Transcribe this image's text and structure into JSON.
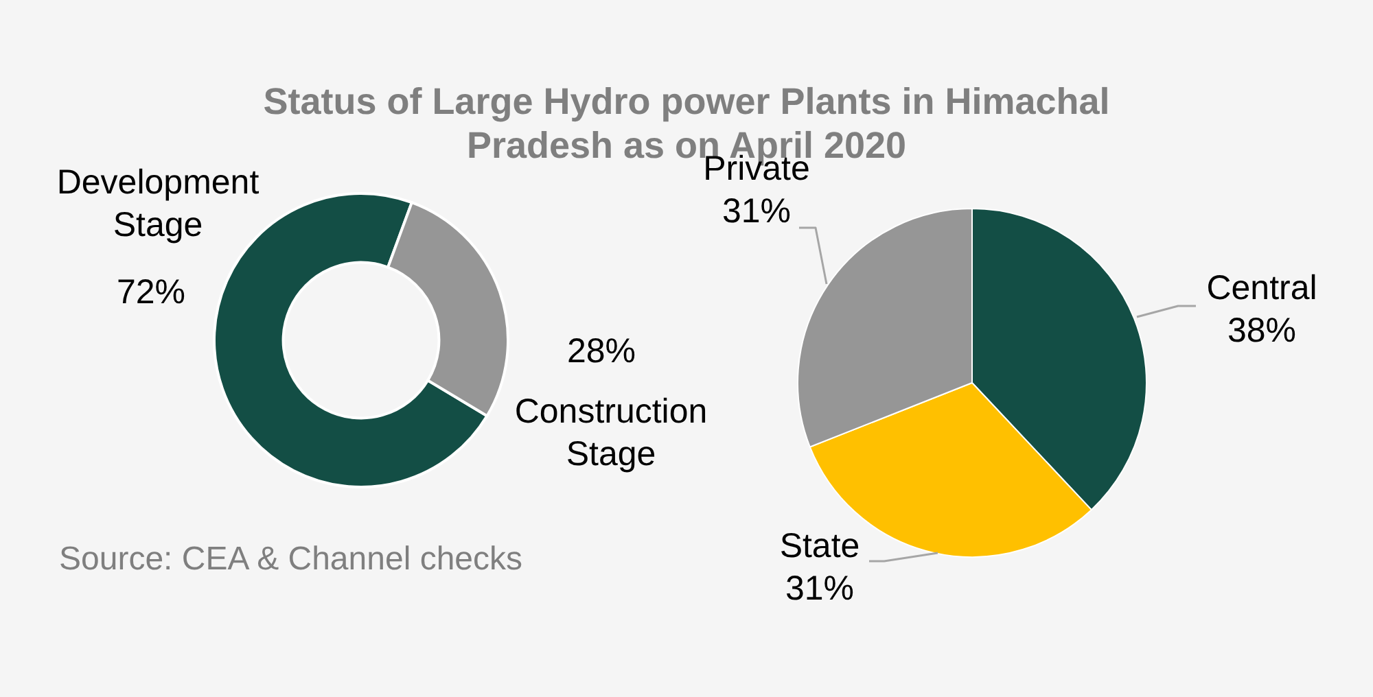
{
  "chart_data": [
    {
      "type": "donut",
      "title": "Status of Large Hydro power Plants in Himachal Pradesh as on April 2020",
      "categories": [
        "Development Stage",
        "Construction Stage"
      ],
      "values": [
        72,
        28
      ],
      "colors": [
        "#134e45",
        "#969696"
      ],
      "value_labels": [
        "72%",
        "28%"
      ],
      "annotations": [
        "Source: CEA & Channel checks"
      ]
    },
    {
      "type": "pie",
      "categories": [
        "Central",
        "State",
        "Private"
      ],
      "values": [
        38,
        31,
        31
      ],
      "colors": [
        "#134e45",
        "#ffc000",
        "#969696"
      ],
      "value_labels": [
        "38%",
        "31%",
        "31%"
      ]
    }
  ]
}
